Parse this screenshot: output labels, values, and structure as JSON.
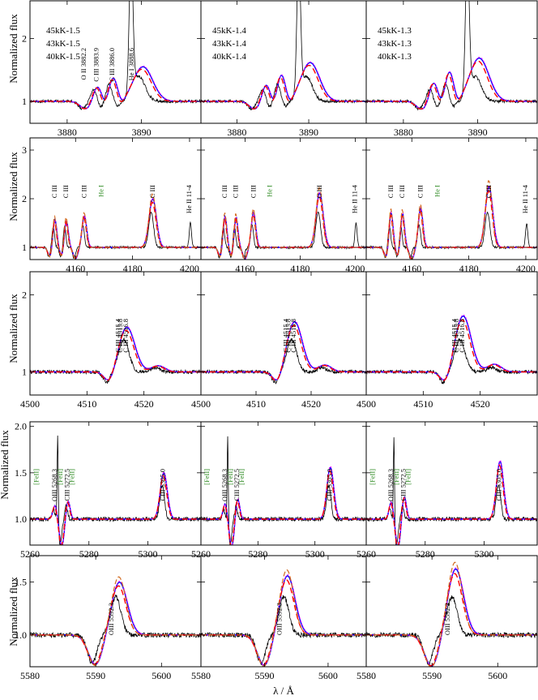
{
  "figure": {
    "x_axis_title": "λ / Å",
    "y_axis_title": "Normalized flux"
  },
  "chart_data": {
    "type": "line",
    "series_styles": [
      {
        "key": "obs",
        "color": "#000000",
        "dash": "",
        "width": 0.8
      },
      {
        "key": "m45",
        "color": "#0000ff",
        "dash": "",
        "width": 1.4
      },
      {
        "key": "m43",
        "color": "#ff00ff",
        "dash": "2 2",
        "width": 1.0
      },
      {
        "key": "m40",
        "color": "#ff0000",
        "dash": "7 4",
        "width": 1.4
      },
      {
        "key": "m40b",
        "color": "#d2691e",
        "dash": "6 3",
        "width": 1.2
      }
    ],
    "rows": [
      {
        "xlim": [
          3875,
          3898
        ],
        "ylim": [
          0.65,
          2.6
        ],
        "xticks": [
          3880,
          3890
        ],
        "yticks": [
          1,
          2
        ],
        "ytick_labels": [
          "1",
          "2"
        ],
        "legends": [
          [
            "45kK-1.5",
            "43kK-1.5",
            "40kK-1.5"
          ],
          [
            "45kK-1.4",
            "43kK-1.4",
            "40kK-1.4"
          ],
          [
            "45kK-1.3",
            "43kK-1.3",
            "40kK-1.3"
          ]
        ],
        "lines": [
          {
            "text": "O II 3882.2",
            "x": 3882.2,
            "color": "#000000"
          },
          {
            "text": "C III 3883.9",
            "x": 3883.9,
            "color": "#000000"
          },
          {
            "text": "C III 3886.0",
            "x": 3886.0,
            "color": "#000000"
          },
          {
            "text": "He I 3888.6",
            "x": 3888.6,
            "color": "#000000"
          }
        ],
        "label_panels": [
          0
        ],
        "features": [
          {
            "x": 3882.4,
            "depth": -0.12,
            "w": 0.8
          },
          {
            "x": 3883.9,
            "depth": 0.26,
            "w": 0.6
          },
          {
            "x": 3884.9,
            "depth": -0.1,
            "w": 0.5
          },
          {
            "x": 3886.0,
            "depth": 0.38,
            "w": 0.6
          },
          {
            "x": 3887.1,
            "depth": -0.08,
            "w": 0.5
          },
          {
            "x": 3890.0,
            "depth": 0.55,
            "w": 1.3
          }
        ],
        "obs_spike": {
          "x": 3888.6,
          "h": 2.2,
          "w": 0.25
        }
      },
      {
        "xlim": [
          4144,
          4204
        ],
        "ylim": [
          0.75,
          3.25
        ],
        "xticks": [
          4160,
          4180,
          4200
        ],
        "yticks": [
          1,
          2,
          3
        ],
        "ytick_labels": [
          "1",
          "2",
          "3"
        ],
        "lines": [
          {
            "text": "C III",
            "x": 4152.5,
            "color": "#000000"
          },
          {
            "text": "C III",
            "x": 4156.5,
            "color": "#000000"
          },
          {
            "text": "C III",
            "x": 4162.9,
            "color": "#000000"
          },
          {
            "text": "He I",
            "x": 4168.9,
            "color": "#2e8b22"
          },
          {
            "text": "C III",
            "x": 4186.9,
            "color": "#000000"
          },
          {
            "text": "He II 11-4",
            "x": 4199.8,
            "color": "#000000"
          }
        ],
        "label_panels": [
          0,
          1,
          2
        ],
        "features": [
          {
            "x": 4151.0,
            "depth": -0.2,
            "w": 0.8
          },
          {
            "x": 4152.5,
            "depth": 0.6,
            "w": 0.7
          },
          {
            "x": 4155.2,
            "depth": -0.2,
            "w": 0.8
          },
          {
            "x": 4156.5,
            "depth": 0.6,
            "w": 0.7
          },
          {
            "x": 4159.8,
            "depth": -0.22,
            "w": 0.8
          },
          {
            "x": 4162.9,
            "depth": 0.65,
            "w": 0.8
          },
          {
            "x": 4186.9,
            "depth": 1.0,
            "w": 1.3
          }
        ],
        "obs_spike": {
          "x": 4200.3,
          "h": 0.5,
          "w": 0.4
        }
      },
      {
        "xlim": [
          4500,
          4530
        ],
        "ylim": [
          0.7,
          2.3
        ],
        "xticks": [
          4500,
          4510,
          4520
        ],
        "yticks": [
          1,
          2
        ],
        "ytick_labels": [
          "1",
          "2"
        ],
        "lines": [
          {
            "text": "C III 4515.4",
            "x": 4515.4,
            "color": "#000000"
          },
          {
            "text": "C III 4515.8",
            "x": 4515.8,
            "color": "#000000"
          },
          {
            "text": "C III 4516.8",
            "x": 4516.8,
            "color": "#000000"
          }
        ],
        "label_panels": [
          0,
          1,
          2
        ],
        "features": [
          {
            "x": 4513.8,
            "depth": -0.14,
            "w": 0.9
          },
          {
            "x": 4516.8,
            "depth": 0.58,
            "w": 1.4
          },
          {
            "x": 4522.3,
            "depth": 0.08,
            "w": 1.2
          }
        ],
        "obs_spike": null
      },
      {
        "xlim": [
          5260,
          5318
        ],
        "ylim": [
          0.72,
          2.05
        ],
        "xticks": [
          5260,
          5280,
          5300
        ],
        "yticks": [
          1.0,
          1.5,
          2.0
        ],
        "ytick_labels": [
          "1.0",
          "1.5",
          "2.0"
        ],
        "lines": [
          {
            "text": "[FeII]",
            "x": 5262.0,
            "color": "#2e8b22"
          },
          {
            "text": "OIII 5268.3",
            "x": 5268.3,
            "color": "#000000"
          },
          {
            "text": "[FeII]",
            "x": 5270.2,
            "color": "#2e8b22"
          },
          {
            "text": "CIII 5272.5",
            "x": 5272.5,
            "color": "#000000"
          },
          {
            "text": "[FeII]",
            "x": 5274.2,
            "color": "#2e8b22"
          },
          {
            "text": "CIII 5305.0",
            "x": 5305.0,
            "color": "#000000"
          }
        ],
        "label_panels": [
          0,
          1,
          2
        ],
        "features": [
          {
            "x": 5268.3,
            "depth": 0.15,
            "w": 0.7
          },
          {
            "x": 5270.6,
            "depth": -0.28,
            "w": 0.8
          },
          {
            "x": 5272.7,
            "depth": 0.2,
            "w": 0.7
          },
          {
            "x": 5305.2,
            "depth": 0.5,
            "w": 1.2
          }
        ],
        "obs_spike": {
          "x": 5269.4,
          "h": 0.95,
          "w": 0.2
        }
      },
      {
        "xlim": [
          5580,
          5606
        ],
        "ylim": [
          0.7,
          1.75
        ],
        "xticks": [
          5580,
          5590,
          5600
        ],
        "yticks": [
          1.0,
          1.5
        ],
        "ytick_labels": [
          "1.0",
          "1.5"
        ],
        "lines": [
          {
            "text": "OIII 5592.3",
            "x": 5592.3,
            "color": "#000000"
          }
        ],
        "label_panels": [
          0,
          1,
          2
        ],
        "features": [
          {
            "x": 5589.8,
            "depth": -0.27,
            "w": 1.1
          },
          {
            "x": 5593.4,
            "depth": 0.5,
            "w": 1.2
          }
        ],
        "obs_spike": null
      }
    ]
  }
}
